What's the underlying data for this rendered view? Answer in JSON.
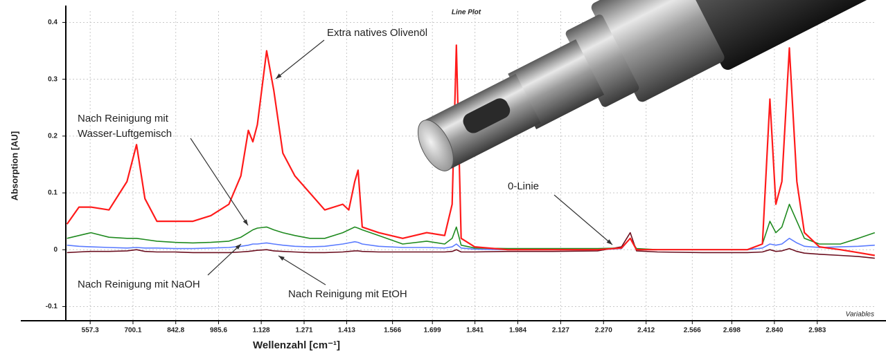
{
  "chart_data": {
    "type": "line",
    "title": "Line Plot",
    "x_note": "Variables",
    "x_label": "Wellenzahl [cm⁻¹]",
    "y_label": "Absorption [AU]",
    "x": [
      480,
      520,
      560,
      620,
      680,
      712,
      740,
      780,
      840,
      900,
      960,
      1020,
      1060,
      1085,
      1100,
      1115,
      1146,
      1170,
      1200,
      1240,
      1290,
      1340,
      1400,
      1420,
      1440,
      1451,
      1465,
      1520,
      1600,
      1680,
      1740,
      1765,
      1779,
      1795,
      1840,
      1950,
      2100,
      2250,
      2330,
      2359,
      2380,
      2450,
      2600,
      2750,
      2800,
      2825,
      2845,
      2865,
      2890,
      2915,
      2940,
      2990,
      3060,
      3120,
      3175
    ],
    "series": [
      {
        "name": "Extra natives Olivenöl",
        "color": "#ff1a1a",
        "values": [
          0.045,
          0.075,
          0.075,
          0.07,
          0.12,
          0.185,
          0.09,
          0.05,
          0.05,
          0.05,
          0.06,
          0.08,
          0.13,
          0.21,
          0.19,
          0.22,
          0.35,
          0.28,
          0.17,
          0.13,
          0.1,
          0.07,
          0.08,
          0.07,
          0.12,
          0.14,
          0.04,
          0.03,
          0.02,
          0.03,
          0.025,
          0.08,
          0.36,
          0.02,
          0.005,
          0,
          0,
          0,
          0.003,
          0.02,
          0,
          0,
          0,
          0,
          0.01,
          0.265,
          0.08,
          0.12,
          0.355,
          0.12,
          0.03,
          0.005,
          0,
          -0.005,
          -0.01
        ]
      },
      {
        "name": "Nach Reinigung mit Wasser-Luftgemisch",
        "color": "#1f8a1f",
        "values": [
          0.02,
          0.025,
          0.03,
          0.022,
          0.02,
          0.02,
          0.018,
          0.015,
          0.013,
          0.012,
          0.013,
          0.015,
          0.022,
          0.03,
          0.035,
          0.038,
          0.04,
          0.035,
          0.03,
          0.025,
          0.02,
          0.02,
          0.03,
          0.035,
          0.04,
          0.038,
          0.035,
          0.025,
          0.01,
          0.015,
          0.01,
          0.02,
          0.04,
          0.008,
          0.003,
          0.002,
          0.002,
          0.002,
          0.003,
          0.02,
          0.002,
          0,
          0,
          0,
          0.01,
          0.05,
          0.03,
          0.04,
          0.08,
          0.05,
          0.02,
          0.01,
          0.01,
          0.02,
          0.03
        ]
      },
      {
        "name": "Nach Reinigung mit NaOH",
        "color": "#5a7bff",
        "values": [
          0.008,
          0.006,
          0.005,
          0.004,
          0.003,
          0.004,
          0.003,
          0.003,
          0.002,
          0.002,
          0.003,
          0.004,
          0.006,
          0.008,
          0.01,
          0.01,
          0.012,
          0.01,
          0.008,
          0.006,
          0.005,
          0.006,
          0.01,
          0.012,
          0.014,
          0.013,
          0.01,
          0.006,
          0.004,
          0.004,
          0.003,
          0.005,
          0.01,
          0.003,
          0.001,
          0,
          0,
          0,
          0.002,
          0.02,
          0.001,
          0,
          0,
          0,
          0.003,
          0.01,
          0.008,
          0.01,
          0.02,
          0.012,
          0.006,
          0.004,
          0.005,
          0.006,
          0.008
        ]
      },
      {
        "name": "Nach Reinigung mit EtOH",
        "color": "#6b0f1f",
        "values": [
          -0.005,
          -0.004,
          -0.003,
          -0.003,
          -0.002,
          0,
          -0.003,
          -0.004,
          -0.004,
          -0.005,
          -0.005,
          -0.005,
          -0.004,
          -0.003,
          -0.002,
          -0.001,
          0,
          -0.002,
          -0.003,
          -0.004,
          -0.005,
          -0.005,
          -0.004,
          -0.003,
          -0.002,
          -0.002,
          -0.003,
          -0.004,
          -0.004,
          -0.004,
          -0.004,
          -0.003,
          0,
          -0.004,
          -0.004,
          -0.003,
          -0.003,
          -0.002,
          0.005,
          0.03,
          -0.002,
          -0.004,
          -0.005,
          -0.005,
          -0.004,
          0,
          -0.003,
          -0.002,
          0.002,
          -0.003,
          -0.006,
          -0.008,
          -0.01,
          -0.012,
          -0.015
        ]
      }
    ],
    "zero_line_label": "0-Linie",
    "xlim": [
      476,
      3180
    ],
    "xticks": [
      557.3,
      700.1,
      842.8,
      985.6,
      {
        "value": 1128,
        "label": "1.128"
      },
      {
        "value": 1271,
        "label": "1.271"
      },
      {
        "value": 1413,
        "label": "1.413"
      },
      {
        "value": 1566,
        "label": "1.566"
      },
      {
        "value": 1699,
        "label": "1.699"
      },
      {
        "value": 1841,
        "label": "1.841"
      },
      {
        "value": 1984,
        "label": "1.984"
      },
      {
        "value": 2127,
        "label": "2.127"
      },
      {
        "value": 2270,
        "label": "2.270"
      },
      {
        "value": 2412,
        "label": "2.412"
      },
      {
        "value": 2566,
        "label": "2.566"
      },
      {
        "value": 2698,
        "label": "2.698"
      },
      {
        "value": 2840,
        "label": "2.840"
      },
      {
        "value": 2983,
        "label": "2.983"
      }
    ],
    "ylim": [
      -0.125,
      0.42
    ],
    "yticks": [
      -0.1,
      0,
      0.1,
      0.2,
      0.3,
      0.4
    ],
    "grid": true
  }
}
